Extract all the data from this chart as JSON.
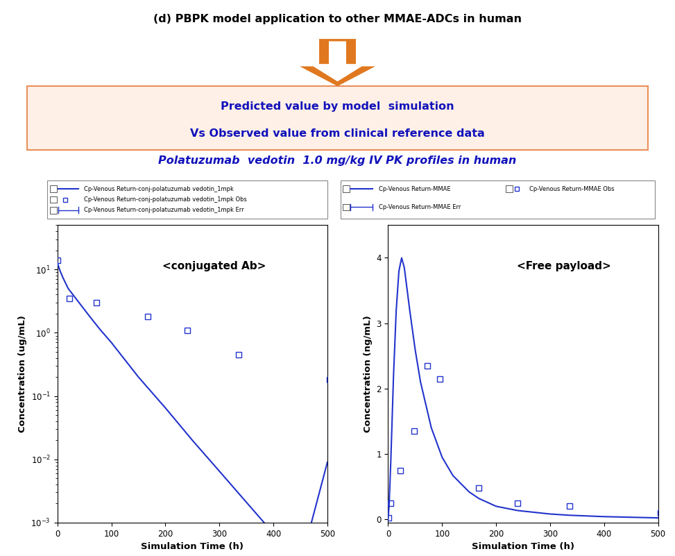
{
  "title_top": "(d) PBPK model application to other MMAE-ADCs in human",
  "box_text_line1": "Predicted value by model  simulation",
  "box_text_line2": "Vs Observed value from clinical reference data",
  "subtitle": "Polatuzumab  vedotin  1.0 mg/kg IV PK profiles in human",
  "plot1_title": "<conjugated Ab>",
  "plot2_title": "<Free payload>",
  "plot1_ylabel": "Concentration (ug/mL)",
  "plot2_ylabel": "Concentration (ng/mL)",
  "xlabel": "Simulation Time (h)",
  "plot_color": "#2233CC",
  "bg_color": "#FFFFFF",
  "box_bg_color": "#FEF0E6",
  "box_border_color": "#E8905A",
  "arrow_color": "#E07820",
  "legend1_labels": [
    "Cp-Venous Return-conj-polatuzumab vedotin_1mpk",
    "Cp-Venous Return-conj-polatuzumab vedotin_1mpk Obs",
    "Cp-Venous Return-conj-polatuzumab vedotin_1mpk Err"
  ],
  "legend2_labels": [
    "Cp-Venous Return-MMAE",
    "Cp-Venous Return-MMAE Obs",
    "Cp-Venous Return-MMAE Err"
  ],
  "conj_sim_t": [
    0.01,
    1,
    5,
    10,
    20,
    40,
    60,
    80,
    100,
    150,
    200,
    250,
    300,
    350,
    400,
    450,
    500
  ],
  "conj_sim_c": [
    13,
    12,
    9.5,
    7.5,
    5.0,
    3.0,
    1.8,
    1.1,
    0.7,
    0.2,
    0.065,
    0.02,
    0.0065,
    0.0021,
    0.00068,
    0.00022,
    0.009
  ],
  "conj_obs_t": [
    1,
    22,
    72,
    168,
    240,
    336,
    504
  ],
  "conj_obs_c": [
    14.0,
    3.5,
    3.0,
    1.8,
    1.1,
    0.45,
    0.18
  ],
  "free_sim_t": [
    0,
    2,
    5,
    10,
    15,
    20,
    25,
    30,
    40,
    50,
    60,
    80,
    100,
    120,
    150,
    168,
    200,
    240,
    300,
    336,
    400,
    504
  ],
  "free_sim_c": [
    0,
    0.25,
    0.9,
    2.2,
    3.2,
    3.8,
    4.0,
    3.85,
    3.2,
    2.6,
    2.1,
    1.4,
    0.95,
    0.67,
    0.42,
    0.32,
    0.2,
    0.135,
    0.082,
    0.063,
    0.042,
    0.022
  ],
  "free_obs_t": [
    1,
    4,
    22,
    48,
    72,
    96,
    168,
    240,
    336,
    504
  ],
  "free_obs_c": [
    0.02,
    0.25,
    0.75,
    1.35,
    2.35,
    2.15,
    0.48,
    0.25,
    0.2,
    0.095
  ]
}
